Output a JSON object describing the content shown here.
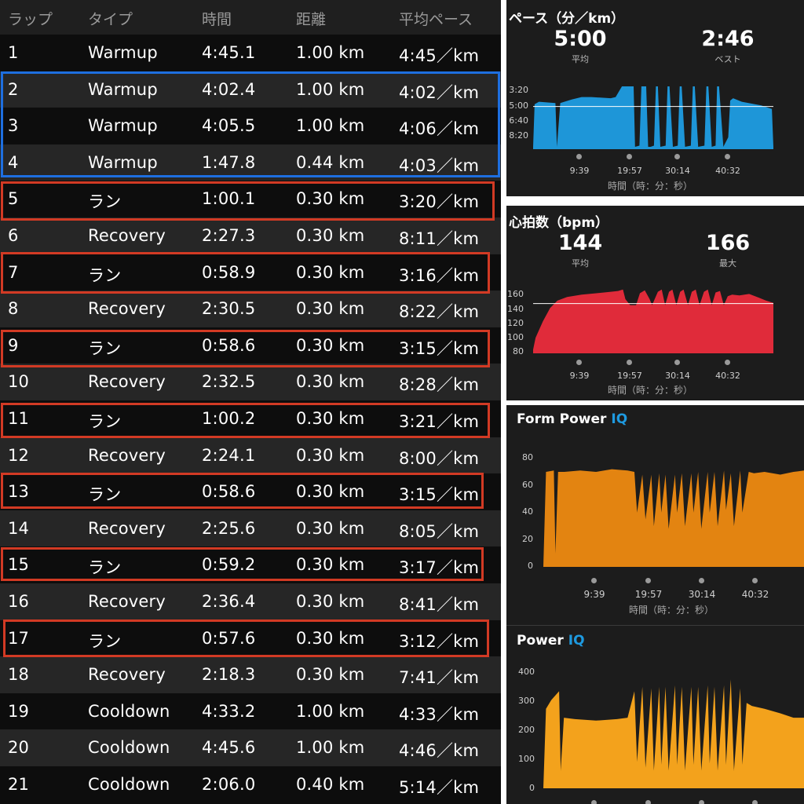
{
  "lap_table": {
    "headers": [
      "ラップ",
      "タイプ",
      "時間",
      "距離",
      "平均ペース"
    ],
    "rows": [
      [
        "1",
        "Warmup",
        "4:45.1",
        "1.00 km",
        "4:45／km"
      ],
      [
        "2",
        "Warmup",
        "4:02.4",
        "1.00 km",
        "4:02／km"
      ],
      [
        "3",
        "Warmup",
        "4:05.5",
        "1.00 km",
        "4:06／km"
      ],
      [
        "4",
        "Warmup",
        "1:47.8",
        "0.44 km",
        "4:03／km"
      ],
      [
        "5",
        "ラン",
        "1:00.1",
        "0.30 km",
        "3:20／km"
      ],
      [
        "6",
        "Recovery",
        "2:27.3",
        "0.30 km",
        "8:11／km"
      ],
      [
        "7",
        "ラン",
        "0:58.9",
        "0.30 km",
        "3:16／km"
      ],
      [
        "8",
        "Recovery",
        "2:30.5",
        "0.30 km",
        "8:22／km"
      ],
      [
        "9",
        "ラン",
        "0:58.6",
        "0.30 km",
        "3:15／km"
      ],
      [
        "10",
        "Recovery",
        "2:32.5",
        "0.30 km",
        "8:28／km"
      ],
      [
        "11",
        "ラン",
        "1:00.2",
        "0.30 km",
        "3:21／km"
      ],
      [
        "12",
        "Recovery",
        "2:24.1",
        "0.30 km",
        "8:00／km"
      ],
      [
        "13",
        "ラン",
        "0:58.6",
        "0.30 km",
        "3:15／km"
      ],
      [
        "14",
        "Recovery",
        "2:25.6",
        "0.30 km",
        "8:05／km"
      ],
      [
        "15",
        "ラン",
        "0:59.2",
        "0.30 km",
        "3:17／km"
      ],
      [
        "16",
        "Recovery",
        "2:36.4",
        "0.30 km",
        "8:41／km"
      ],
      [
        "17",
        "ラン",
        "0:57.6",
        "0.30 km",
        "3:12／km"
      ],
      [
        "18",
        "Recovery",
        "2:18.3",
        "0.30 km",
        "7:41／km"
      ],
      [
        "19",
        "Cooldown",
        "4:33.2",
        "1.00 km",
        "4:33／km"
      ],
      [
        "20",
        "Cooldown",
        "4:45.6",
        "1.00 km",
        "4:46／km"
      ],
      [
        "21",
        "Cooldown",
        "2:06.0",
        "0.40 km",
        "5:14／km"
      ]
    ],
    "highlight_color_blue": "#1e6fe0",
    "highlight_color_red": "#d23a24"
  },
  "pace_panel": {
    "title": "ペース（分／km）",
    "avg_value": "5:00",
    "avg_label": "平均",
    "best_value": "2:46",
    "best_label": "ベスト",
    "x_axis_label": "時間（時：分：秒）"
  },
  "hr_panel": {
    "title": "心拍数（bpm）",
    "avg_value": "144",
    "avg_label": "平均",
    "max_value": "166",
    "max_label": "最大",
    "x_axis_label": "時間（時：分：秒）"
  },
  "form_power_panel": {
    "title": "Form Power",
    "badge": "IQ",
    "x_axis_label": "時間（時：分：秒）"
  },
  "power_panel": {
    "title": "Power",
    "badge": "IQ"
  },
  "chart_data": [
    {
      "type": "area",
      "ylabel": "ペース（分／km）",
      "y_ticks": [
        "3:20",
        "5:00",
        "6:40",
        "8:20"
      ],
      "y_tick_values": [
        3.333,
        5.0,
        6.667,
        8.333
      ],
      "y_inverted": true,
      "x_ticks": [
        "9:39",
        "19:57",
        "30:14",
        "40:32"
      ],
      "x_tick_values": [
        9.65,
        19.95,
        30.233,
        40.533
      ],
      "xlim": [
        0,
        49.5
      ],
      "reference_line": 5.0,
      "color": "#1e96d8",
      "x": [
        0,
        0.3,
        1.2,
        4.6,
        4.9,
        5.6,
        8,
        10,
        12,
        16,
        17,
        18.3,
        20.7,
        21,
        21.9,
        22.3,
        23.3,
        23.7,
        24.2,
        24.9,
        25.3,
        25.7,
        26.2,
        27.3,
        27.7,
        28.1,
        28.8,
        29.8,
        30.2,
        30.6,
        31.3,
        32.5,
        32.9,
        33.3,
        34,
        35.3,
        35.7,
        36.1,
        36.8,
        37.6,
        37.9,
        38.3,
        39.2,
        40.2,
        40.6,
        41.2,
        43,
        47,
        49.2,
        49.5
      ],
      "y": [
        8.4,
        4.8,
        4.6,
        4.7,
        8.4,
        4.7,
        4.4,
        4.2,
        4.2,
        4.3,
        4.2,
        3.3,
        3.3,
        8.4,
        8.3,
        3.3,
        3.3,
        8.4,
        8.4,
        8.3,
        3.3,
        3.3,
        8.4,
        8.3,
        3.3,
        3.3,
        8.4,
        8.3,
        3.3,
        3.3,
        8.4,
        8.3,
        3.3,
        3.3,
        8.4,
        8.3,
        3.3,
        3.3,
        8.4,
        8.3,
        3.3,
        3.3,
        8.4,
        7.6,
        4.5,
        4.3,
        4.6,
        4.9,
        5.2,
        8.4
      ]
    },
    {
      "type": "area",
      "ylabel": "心拍数（bpm）",
      "y_ticks": [
        "160",
        "140",
        "120",
        "100",
        "80"
      ],
      "y_tick_values": [
        160,
        140,
        120,
        100,
        80
      ],
      "x_ticks": [
        "9:39",
        "19:57",
        "30:14",
        "40:32"
      ],
      "x_tick_values": [
        9.65,
        19.95,
        30.233,
        40.533
      ],
      "xlim": [
        0,
        49.5
      ],
      "reference_line": 144,
      "color": "#e02b3a",
      "x": [
        0,
        0.5,
        2,
        3.5,
        5,
        7,
        10,
        13,
        16,
        17.5,
        18.5,
        19,
        20,
        21.2,
        22,
        23,
        24,
        24.5,
        25.7,
        26.5,
        27.2,
        28,
        28.7,
        29.5,
        30.3,
        31,
        31.9,
        32.7,
        33.5,
        34.3,
        35.2,
        36,
        36.8,
        37.6,
        38.5,
        39.3,
        40.1,
        41,
        42.5,
        44.5,
        46.5,
        48,
        49.5
      ],
      "y": [
        82,
        98,
        120,
        138,
        148,
        153,
        156,
        158,
        160,
        161,
        163,
        150,
        142,
        142,
        158,
        162,
        150,
        142,
        160,
        163,
        142,
        160,
        163,
        142,
        160,
        163,
        142,
        160,
        163,
        142,
        160,
        163,
        142,
        159,
        161,
        142,
        154,
        156,
        155,
        157,
        152,
        148,
        145
      ]
    },
    {
      "type": "area",
      "ylabel": "Form Power",
      "y_ticks": [
        "80",
        "60",
        "40",
        "20",
        "0"
      ],
      "y_tick_values": [
        80,
        60,
        40,
        20,
        0
      ],
      "x_ticks": [
        "9:39",
        "19:57",
        "30:14",
        "40:32"
      ],
      "x_tick_values": [
        9.65,
        19.95,
        30.233,
        40.533
      ],
      "xlim": [
        0,
        49.5
      ],
      "color": "#e38411",
      "x": [
        0,
        0.5,
        2,
        2.3,
        2.8,
        4,
        7,
        10,
        13,
        16,
        17.3,
        17.8,
        18.8,
        19.4,
        20.5,
        21,
        22,
        22.4,
        23.2,
        23.8,
        25,
        25.4,
        26.3,
        26.9,
        28.1,
        28.5,
        29.4,
        30,
        31.2,
        31.6,
        32.5,
        33.1,
        34.3,
        34.7,
        35.6,
        36.2,
        37.4,
        37.8,
        39,
        40,
        42,
        45,
        47.5,
        49.5
      ],
      "y": [
        0,
        70,
        71,
        10,
        70,
        70,
        71,
        70,
        72,
        71,
        70,
        40,
        68,
        35,
        68,
        30,
        69,
        40,
        68,
        28,
        68,
        40,
        69,
        30,
        69,
        40,
        70,
        28,
        70,
        40,
        70,
        30,
        71,
        42,
        69,
        30,
        71,
        40,
        70,
        69,
        70,
        68,
        70,
        71
      ]
    },
    {
      "type": "area",
      "ylabel": "Power",
      "y_ticks": [
        "400",
        "300",
        "200",
        "100",
        "0"
      ],
      "y_tick_values": [
        400,
        300,
        200,
        100,
        0
      ],
      "xlim": [
        0,
        49.5
      ],
      "color": "#f3a21c",
      "x": [
        0,
        0.5,
        1.5,
        3,
        3.3,
        3.9,
        6,
        10,
        14,
        16,
        17.3,
        17.8,
        18.8,
        19.4,
        20.5,
        21,
        22,
        22.4,
        23.2,
        23.8,
        25,
        25.4,
        26.3,
        26.9,
        28.1,
        28.5,
        29.4,
        30,
        31.2,
        31.6,
        32.5,
        33.1,
        34.3,
        34.7,
        35.6,
        36.2,
        37.4,
        37.8,
        38.6,
        39.6,
        42,
        45,
        47.5,
        49.5
      ],
      "y": [
        0,
        270,
        300,
        330,
        60,
        240,
        235,
        230,
        235,
        240,
        330,
        90,
        345,
        70,
        340,
        60,
        345,
        80,
        345,
        60,
        350,
        80,
        345,
        60,
        345,
        80,
        345,
        60,
        350,
        85,
        345,
        60,
        350,
        80,
        370,
        60,
        340,
        80,
        290,
        280,
        270,
        255,
        240,
        240
      ]
    }
  ]
}
